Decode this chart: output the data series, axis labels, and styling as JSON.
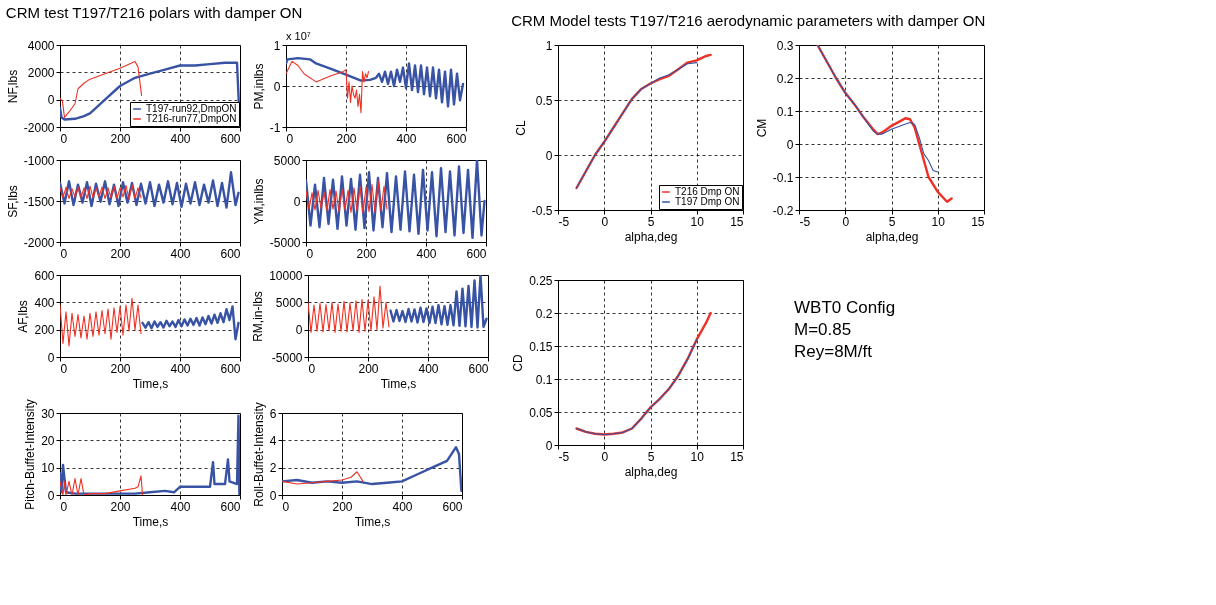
{
  "chart_data": [
    {
      "type": "line",
      "title": "CRM test T197/T216 polars with damper ON",
      "ylabel": "NF,lbs",
      "xlim": [
        0,
        600
      ],
      "xticks": [
        0,
        200,
        400,
        600
      ],
      "ylim": [
        -2000,
        4000
      ],
      "yticks": [
        -2000,
        0,
        2000,
        4000
      ],
      "grid": true,
      "legend": "bottom right",
      "series": [
        {
          "name": "T197-run92,DmpON",
          "color": "#3852a4",
          "x": [
            0,
            5,
            15,
            50,
            80,
            100,
            130,
            150,
            200,
            250,
            300,
            350,
            400,
            450,
            500,
            550,
            590,
            596
          ],
          "values": [
            -600,
            -1300,
            -1450,
            -1400,
            -1200,
            -1000,
            -400,
            0,
            1000,
            1600,
            1900,
            2200,
            2500,
            2500,
            2600,
            2700,
            2700,
            -200
          ]
        },
        {
          "name": "T216-run77,DmpON",
          "color": "#ee3124",
          "x": [
            0,
            8,
            15,
            30,
            50,
            60,
            80,
            100,
            150,
            200,
            250,
            260,
            272
          ],
          "values": [
            100,
            -100,
            -1300,
            -900,
            -300,
            800,
            1200,
            1500,
            1900,
            2300,
            2800,
            2400,
            300
          ]
        }
      ]
    },
    {
      "type": "line",
      "ylabel": "PM,inlbs",
      "annotations": [
        "x 10⁷"
      ],
      "xlim": [
        0,
        600
      ],
      "xticks": [
        0,
        200,
        400,
        600
      ],
      "ylim": [
        -1,
        1
      ],
      "yticks": [
        -1,
        0,
        1
      ],
      "grid": true,
      "series": [
        {
          "color": "#3852a4",
          "x": [
            0,
            5,
            40,
            80,
            100,
            150,
            200,
            250,
            280,
            300,
            310,
            320,
            330,
            340,
            350,
            360,
            370,
            380,
            390,
            400,
            410,
            420,
            430,
            440,
            450,
            460,
            470,
            480,
            490,
            500,
            510,
            520,
            530,
            540,
            550,
            560,
            570,
            580,
            590
          ],
          "values": [
            0.55,
            0.65,
            0.68,
            0.65,
            0.55,
            0.42,
            0.28,
            0.13,
            0.15,
            0.2,
            0.3,
            0.1,
            0.35,
            0.05,
            0.35,
            0,
            0.4,
            0.1,
            0.45,
            -0.05,
            0.55,
            -0.1,
            0.5,
            -0.15,
            0.5,
            -0.2,
            0.45,
            -0.25,
            0.45,
            -0.3,
            0.4,
            -0.4,
            0.35,
            -0.5,
            0.4,
            -0.45,
            0.3,
            -0.35,
            0.05
          ]
        },
        {
          "color": "#ee3124",
          "x": [
            0,
            10,
            20,
            40,
            60,
            100,
            150,
            190,
            200,
            205,
            210,
            215,
            220,
            225,
            230,
            235,
            240,
            245,
            250,
            255,
            260,
            265,
            270,
            275
          ],
          "values": [
            0.3,
            0.45,
            0.6,
            0.5,
            0.3,
            0.1,
            0.25,
            0.35,
            0.4,
            -0.3,
            0.1,
            -0.4,
            0,
            -0.2,
            -0.3,
            -0.1,
            -0.5,
            -0.2,
            -0.65,
            0.35,
            0.1,
            0.3,
            0.2,
            0.35
          ]
        }
      ]
    },
    {
      "type": "line",
      "ylabel": "SF,lbs",
      "xlim": [
        0,
        600
      ],
      "xticks": [
        0,
        200,
        400,
        600
      ],
      "ylim": [
        -2000,
        -1000
      ],
      "yticks": [
        -2000,
        -1500,
        -1000
      ],
      "grid": true,
      "series": [
        {
          "color": "#3852a4",
          "x": [
            0,
            15,
            30,
            45,
            60,
            75,
            90,
            105,
            120,
            135,
            150,
            165,
            180,
            195,
            210,
            225,
            240,
            255,
            270,
            285,
            300,
            315,
            330,
            345,
            360,
            375,
            390,
            405,
            420,
            435,
            450,
            465,
            480,
            495,
            510,
            525,
            540,
            555,
            570,
            585,
            595
          ],
          "values": [
            -1280,
            -1530,
            -1260,
            -1550,
            -1300,
            -1520,
            -1270,
            -1560,
            -1290,
            -1510,
            -1260,
            -1540,
            -1300,
            -1560,
            -1270,
            -1520,
            -1280,
            -1550,
            -1290,
            -1530,
            -1270,
            -1560,
            -1300,
            -1520,
            -1260,
            -1540,
            -1280,
            -1570,
            -1290,
            -1530,
            -1270,
            -1550,
            -1300,
            -1520,
            -1250,
            -1560,
            -1280,
            -1580,
            -1150,
            -1550,
            -1400
          ]
        },
        {
          "color": "#ee3124",
          "x": [
            0,
            10,
            20,
            30,
            40,
            50,
            60,
            70,
            80,
            90,
            100,
            110,
            120,
            130,
            140,
            150,
            160,
            170,
            180,
            190,
            200,
            210,
            220,
            230,
            240,
            250,
            260,
            270
          ],
          "values": [
            -1340,
            -1460,
            -1330,
            -1470,
            -1350,
            -1450,
            -1330,
            -1460,
            -1340,
            -1470,
            -1320,
            -1460,
            -1340,
            -1450,
            -1330,
            -1470,
            -1340,
            -1460,
            -1320,
            -1470,
            -1340,
            -1450,
            -1310,
            -1480,
            -1300,
            -1470,
            -1340,
            -1460
          ]
        }
      ]
    },
    {
      "type": "line",
      "ylabel": "YM,inlbs",
      "xlim": [
        0,
        600
      ],
      "xticks": [
        0,
        200,
        400,
        600
      ],
      "ylim": [
        -5000,
        5000
      ],
      "yticks": [
        -5000,
        0,
        5000
      ],
      "grid": true,
      "series": [
        {
          "color": "#3852a4",
          "x": [
            0,
            15,
            30,
            45,
            60,
            75,
            90,
            105,
            120,
            135,
            150,
            165,
            180,
            195,
            210,
            225,
            240,
            255,
            270,
            285,
            300,
            315,
            330,
            345,
            360,
            375,
            390,
            405,
            420,
            435,
            450,
            465,
            480,
            495,
            510,
            525,
            540,
            555,
            570,
            585,
            595
          ],
          "values": [
            2500,
            -3000,
            2000,
            -3200,
            2800,
            -2800,
            2600,
            -3400,
            3000,
            -3000,
            2700,
            -3500,
            3200,
            -3300,
            3500,
            -3600,
            2800,
            -3200,
            3400,
            -3800,
            3000,
            -3500,
            3600,
            -3700,
            3200,
            -4000,
            3800,
            -3600,
            3500,
            -4300,
            4000,
            -3800,
            3600,
            -4200,
            4200,
            -3900,
            3800,
            -4500,
            5000,
            -4200,
            0
          ]
        },
        {
          "color": "#ee3124",
          "x": [
            0,
            10,
            20,
            30,
            40,
            50,
            60,
            70,
            80,
            90,
            100,
            110,
            120,
            130,
            140,
            150,
            160,
            170,
            180,
            190,
            200,
            210,
            220,
            230,
            240,
            250,
            260,
            270
          ],
          "values": [
            1200,
            -1000,
            1000,
            -1100,
            1300,
            -900,
            1100,
            -1200,
            1400,
            -1000,
            1200,
            -1300,
            1500,
            -1100,
            1300,
            -1400,
            1600,
            -1200,
            1800,
            -1500,
            1700,
            -1300,
            2000,
            -1400,
            2500,
            -1200,
            1800,
            -1000
          ]
        }
      ]
    },
    {
      "type": "line",
      "xlabel": "Time,s",
      "ylabel": "AF,lbs",
      "xlim": [
        0,
        600
      ],
      "xticks": [
        0,
        200,
        400,
        600
      ],
      "ylim": [
        0,
        600
      ],
      "yticks": [
        0,
        200,
        400,
        600
      ],
      "grid": true,
      "series": [
        {
          "color": "#3852a4",
          "x": [
            275,
            285,
            295,
            305,
            315,
            325,
            335,
            345,
            355,
            365,
            375,
            385,
            395,
            405,
            415,
            425,
            435,
            445,
            455,
            465,
            475,
            485,
            495,
            505,
            515,
            525,
            535,
            545,
            555,
            565,
            575,
            585,
            595
          ],
          "values": [
            250,
            215,
            255,
            210,
            260,
            220,
            255,
            215,
            265,
            225,
            260,
            220,
            270,
            225,
            275,
            230,
            280,
            235,
            285,
            230,
            290,
            240,
            300,
            245,
            310,
            250,
            320,
            255,
            350,
            270,
            370,
            130,
            250
          ]
        },
        {
          "color": "#ee3124",
          "x": [
            0,
            10,
            20,
            30,
            40,
            50,
            60,
            70,
            80,
            90,
            100,
            110,
            120,
            130,
            140,
            150,
            160,
            170,
            180,
            190,
            200,
            210,
            220,
            230,
            240,
            250,
            260,
            270
          ],
          "values": [
            380,
            100,
            330,
            80,
            320,
            150,
            310,
            140,
            300,
            130,
            320,
            150,
            330,
            160,
            340,
            170,
            350,
            130,
            360,
            180,
            370,
            160,
            380,
            190,
            430,
            200,
            380,
            170
          ]
        }
      ]
    },
    {
      "type": "line",
      "xlabel": "Time,s",
      "ylabel": "RM,in-lbs",
      "xlim": [
        0,
        600
      ],
      "xticks": [
        0,
        200,
        400,
        600
      ],
      "ylim": [
        -5000,
        10000
      ],
      "yticks": [
        -5000,
        0,
        5000,
        10000
      ],
      "grid": true,
      "series": [
        {
          "color": "#3852a4",
          "x": [
            275,
            285,
            295,
            305,
            315,
            325,
            335,
            345,
            355,
            365,
            375,
            385,
            395,
            405,
            415,
            425,
            435,
            445,
            455,
            465,
            475,
            485,
            495,
            505,
            515,
            525,
            535,
            545,
            555,
            565,
            575,
            585,
            595
          ],
          "values": [
            3500,
            1500,
            3600,
            1600,
            3400,
            1400,
            3800,
            1500,
            3700,
            1300,
            4000,
            1400,
            3900,
            1200,
            4200,
            1200,
            4500,
            1000,
            4300,
            900,
            4500,
            800,
            7000,
            700,
            7500,
            600,
            8000,
            500,
            9000,
            400,
            10000,
            500,
            2000
          ]
        },
        {
          "color": "#ee3124",
          "x": [
            0,
            10,
            20,
            30,
            40,
            50,
            60,
            70,
            80,
            90,
            100,
            110,
            120,
            130,
            140,
            150,
            160,
            170,
            180,
            190,
            200,
            210,
            220,
            230,
            240,
            250,
            260,
            270
          ],
          "values": [
            5000,
            -500,
            4500,
            -300,
            4800,
            -400,
            4600,
            -200,
            5000,
            -500,
            4700,
            -300,
            5200,
            -400,
            4900,
            -200,
            5300,
            -500,
            5500,
            -300,
            5400,
            -200,
            6000,
            0,
            8000,
            300,
            5000,
            500
          ]
        }
      ]
    },
    {
      "type": "line",
      "xlabel": "Time,s",
      "ylabel": "Pitch-Buffet-Intensity",
      "xlim": [
        0,
        600
      ],
      "xticks": [
        0,
        200,
        400,
        600
      ],
      "ylim": [
        0,
        30
      ],
      "yticks": [
        0,
        10,
        20,
        30
      ],
      "grid": true,
      "series": [
        {
          "color": "#3852a4",
          "x": [
            0,
            5,
            10,
            20,
            50,
            100,
            150,
            200,
            250,
            300,
            350,
            380,
            400,
            450,
            500,
            510,
            515,
            550,
            560,
            565,
            590,
            595,
            598
          ],
          "values": [
            8,
            1,
            11,
            1,
            0.5,
            0.5,
            0.5,
            0.5,
            0.5,
            1,
            1.5,
            1,
            3,
            3,
            3,
            12,
            4,
            4,
            13,
            5,
            4,
            29,
            0
          ]
        },
        {
          "color": "#ee3124",
          "x": [
            0,
            10,
            15,
            20,
            30,
            40,
            50,
            60,
            70,
            80,
            100,
            150,
            200,
            250,
            260,
            270,
            275
          ],
          "values": [
            5,
            0,
            5,
            0,
            5,
            0,
            6,
            0,
            6,
            0,
            0.5,
            0.5,
            1.5,
            2.5,
            3,
            7,
            0
          ]
        }
      ]
    },
    {
      "type": "line",
      "xlabel": "Time,s",
      "ylabel": "Roll-Buffet-Intensity",
      "xlim": [
        0,
        600
      ],
      "xticks": [
        0,
        200,
        400,
        600
      ],
      "ylim": [
        0,
        6
      ],
      "yticks": [
        0,
        2,
        4,
        6
      ],
      "grid": true,
      "series": [
        {
          "color": "#3852a4",
          "x": [
            0,
            50,
            100,
            150,
            200,
            250,
            300,
            350,
            400,
            450,
            500,
            550,
            580,
            590,
            598
          ],
          "values": [
            1,
            1.1,
            0.9,
            1,
            0.9,
            1,
            0.8,
            0.9,
            1,
            1.5,
            2,
            2.5,
            3.5,
            3,
            0.3
          ]
        },
        {
          "color": "#ee3124",
          "x": [
            0,
            50,
            100,
            150,
            200,
            230,
            250,
            270
          ],
          "values": [
            1,
            0.8,
            0.9,
            1,
            1.1,
            1.3,
            1.7,
            1
          ]
        }
      ]
    },
    {
      "type": "line",
      "title": "CRM Model tests T197/T216 aerodynamic parameters with damper ON",
      "xlabel": "alpha,deg",
      "ylabel": "CL",
      "xlim": [
        -5,
        15
      ],
      "xticks": [
        -5,
        0,
        5,
        10,
        15
      ],
      "ylim": [
        -0.5,
        1
      ],
      "yticks": [
        -0.5,
        0,
        0.5,
        1
      ],
      "grid": true,
      "legend": "bottom right",
      "series": [
        {
          "name": "T216 Dmp ON",
          "color": "#ee3124",
          "x": [
            -3,
            -2,
            -1,
            0,
            1,
            2,
            3,
            4,
            5,
            6,
            7,
            8,
            9,
            10,
            10.5,
            11,
            11.5
          ],
          "values": [
            -0.3,
            -0.15,
            0,
            0.12,
            0.25,
            0.38,
            0.51,
            0.6,
            0.65,
            0.69,
            0.72,
            0.78,
            0.84,
            0.86,
            0.88,
            0.9,
            0.91
          ]
        },
        {
          "name": "T197 Dmp ON",
          "color": "#3852a4",
          "x": [
            -3,
            -2,
            -1,
            0,
            1,
            2,
            3,
            4,
            5,
            6,
            7,
            8,
            9,
            10
          ],
          "values": [
            -0.3,
            -0.15,
            0,
            0.12,
            0.25,
            0.38,
            0.51,
            0.6,
            0.65,
            0.7,
            0.73,
            0.78,
            0.83,
            0.84
          ]
        }
      ]
    },
    {
      "type": "line",
      "xlabel": "alpha,deg",
      "ylabel": "CM",
      "xlim": [
        -5,
        15
      ],
      "xticks": [
        -5,
        0,
        5,
        10,
        15
      ],
      "ylim": [
        -0.2,
        0.3
      ],
      "yticks": [
        -0.2,
        -0.1,
        0,
        0.1,
        0.2,
        0.3
      ],
      "grid": true,
      "series": [
        {
          "color": "#ee3124",
          "x": [
            -3,
            -2,
            -1,
            0,
            1,
            2,
            3,
            3.5,
            4,
            5,
            6,
            6.5,
            7,
            7.5,
            8,
            8.5,
            9,
            10,
            11,
            11.5
          ],
          "values": [
            0.3,
            0.25,
            0.2,
            0.155,
            0.12,
            0.08,
            0.045,
            0.03,
            0.035,
            0.055,
            0.07,
            0.078,
            0.075,
            0.05,
            0,
            -0.05,
            -0.1,
            -0.145,
            -0.175,
            -0.165
          ]
        },
        {
          "color": "#3852a4",
          "x": [
            -3,
            -2,
            -1,
            0,
            1,
            2,
            3,
            3.5,
            4,
            5,
            6,
            7,
            7.5,
            8,
            8.5,
            9,
            9.5,
            10
          ],
          "values": [
            0.3,
            0.25,
            0.2,
            0.155,
            0.12,
            0.08,
            0.04,
            0.03,
            0.03,
            0.045,
            0.055,
            0.065,
            0.06,
            0.02,
            -0.03,
            -0.05,
            -0.08,
            -0.085
          ]
        }
      ]
    },
    {
      "type": "line",
      "xlabel": "alpha,deg",
      "ylabel": "CD",
      "xlim": [
        -5,
        15
      ],
      "xticks": [
        -5,
        0,
        5,
        10,
        15
      ],
      "ylim": [
        0,
        0.25
      ],
      "yticks": [
        0,
        0.05,
        0.1,
        0.15,
        0.2,
        0.25
      ],
      "grid": true,
      "series": [
        {
          "color": "#ee3124",
          "x": [
            -3,
            -2,
            -1,
            0,
            1,
            2,
            3,
            4,
            5,
            6,
            7,
            8,
            9,
            10,
            11,
            11.5
          ],
          "values": [
            0.025,
            0.02,
            0.017,
            0.016,
            0.017,
            0.019,
            0.025,
            0.04,
            0.057,
            0.07,
            0.085,
            0.105,
            0.13,
            0.16,
            0.185,
            0.2
          ]
        },
        {
          "color": "#3852a4",
          "x": [
            -3,
            -2,
            -1,
            0,
            1,
            2,
            3,
            4,
            5,
            6,
            7,
            8,
            9,
            10
          ],
          "values": [
            0.025,
            0.02,
            0.017,
            0.016,
            0.017,
            0.019,
            0.025,
            0.04,
            0.057,
            0.07,
            0.085,
            0.105,
            0.13,
            0.16
          ]
        }
      ]
    },
    {
      "type": "other",
      "annotations": [
        "WBT0 Config",
        "M=0.85",
        "Rey=8M/ft"
      ]
    }
  ]
}
